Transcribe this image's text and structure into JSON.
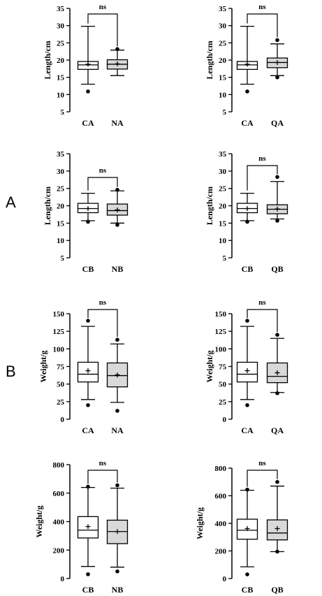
{
  "figure": {
    "panel_labels": [
      "A",
      "B"
    ]
  },
  "chart_data": [
    {
      "type": "boxplot",
      "ylabel": "Length/cm",
      "yticks": [
        5,
        10,
        15,
        20,
        25,
        30,
        35
      ],
      "ylim": [
        5,
        35
      ],
      "significance": "ns",
      "boxes": [
        {
          "category": "CA",
          "fill": "#ffffff",
          "whisker_low": 13,
          "q1": 17.3,
          "median": 18.6,
          "q3": 19.6,
          "whisker_high": 29.8,
          "mean": 18.8,
          "outliers": [
            10.9
          ]
        },
        {
          "category": "NA",
          "fill": "#d9d9d9",
          "whisker_low": 15.5,
          "q1": 17.4,
          "median": 18.8,
          "q3": 20.1,
          "whisker_high": 22.9,
          "mean": 18.9,
          "outliers": [
            23.2
          ]
        }
      ]
    },
    {
      "type": "boxplot",
      "ylabel": "Length/cm",
      "yticks": [
        5,
        10,
        15,
        20,
        25,
        30,
        35
      ],
      "ylim": [
        5,
        35
      ],
      "significance": "ns",
      "boxes": [
        {
          "category": "CA",
          "fill": "#ffffff",
          "whisker_low": 13,
          "q1": 17.3,
          "median": 18.6,
          "q3": 19.6,
          "whisker_high": 29.8,
          "mean": 18.8,
          "outliers": [
            10.9
          ]
        },
        {
          "category": "QA",
          "fill": "#d9d9d9",
          "whisker_low": 15.5,
          "q1": 17.8,
          "median": 19.3,
          "q3": 20.6,
          "whisker_high": 24.7,
          "mean": 19.3,
          "outliers": [
            15,
            25.8
          ]
        }
      ]
    },
    {
      "type": "boxplot",
      "ylabel": "Length/cm",
      "yticks": [
        5,
        10,
        15,
        20,
        25,
        30,
        35
      ],
      "ylim": [
        5,
        35
      ],
      "significance": "ns",
      "boxes": [
        {
          "category": "CB",
          "fill": "#ffffff",
          "whisker_low": 15.7,
          "q1": 18,
          "median": 19.2,
          "q3": 20.7,
          "whisker_high": 23.6,
          "mean": 19.2,
          "outliers": [
            15.4
          ]
        },
        {
          "category": "NB",
          "fill": "#d9d9d9",
          "whisker_low": 15,
          "q1": 17.3,
          "median": 18.6,
          "q3": 20.5,
          "whisker_high": 24.3,
          "mean": 18.8,
          "outliers": [
            14.5,
            24.6
          ]
        }
      ]
    },
    {
      "type": "boxplot",
      "ylabel": "Length/cm",
      "yticks": [
        5,
        10,
        15,
        20,
        25,
        30,
        35
      ],
      "ylim": [
        5,
        35
      ],
      "significance": "ns",
      "boxes": [
        {
          "category": "CB",
          "fill": "#ffffff",
          "whisker_low": 15.7,
          "q1": 18,
          "median": 19.2,
          "q3": 20.7,
          "whisker_high": 23.6,
          "mean": 19.2,
          "outliers": [
            15.4
          ]
        },
        {
          "category": "QB",
          "fill": "#d9d9d9",
          "whisker_low": 16.2,
          "q1": 17.7,
          "median": 19,
          "q3": 20.3,
          "whisker_high": 27,
          "mean": 19.1,
          "outliers": [
            15.7,
            28.3
          ]
        }
      ]
    },
    {
      "type": "boxplot",
      "ylabel": "Weight/g",
      "yticks": [
        0,
        25,
        50,
        75,
        100,
        125,
        150
      ],
      "ylim": [
        0,
        150
      ],
      "significance": "ns",
      "boxes": [
        {
          "category": "CA",
          "fill": "#ffffff",
          "whisker_low": 28,
          "q1": 53,
          "median": 64,
          "q3": 81,
          "whisker_high": 132,
          "mean": 69,
          "outliers": [
            20,
            140
          ]
        },
        {
          "category": "NA",
          "fill": "#d9d9d9",
          "whisker_low": 24,
          "q1": 46,
          "median": 62,
          "q3": 80,
          "whisker_high": 107,
          "mean": 63,
          "outliers": [
            12,
            113
          ]
        }
      ]
    },
    {
      "type": "boxplot",
      "ylabel": "Weight/g",
      "yticks": [
        0,
        25,
        50,
        75,
        100,
        125,
        150
      ],
      "ylim": [
        0,
        150
      ],
      "significance": "ns",
      "boxes": [
        {
          "category": "CA",
          "fill": "#ffffff",
          "whisker_low": 28,
          "q1": 53,
          "median": 64,
          "q3": 81,
          "whisker_high": 132,
          "mean": 69,
          "outliers": [
            20,
            140
          ]
        },
        {
          "category": "QA",
          "fill": "#d9d9d9",
          "whisker_low": 38,
          "q1": 52,
          "median": 61,
          "q3": 80,
          "whisker_high": 115,
          "mean": 66,
          "outliers": [
            37,
            120
          ]
        }
      ]
    },
    {
      "type": "boxplot",
      "ylabel": "Weight/g",
      "yticks": [
        0,
        200,
        400,
        600,
        800
      ],
      "ylim": [
        0,
        800
      ],
      "significance": "ns",
      "boxes": [
        {
          "category": "CB",
          "fill": "#ffffff",
          "whisker_low": 85,
          "q1": 285,
          "median": 340,
          "q3": 435,
          "whisker_high": 640,
          "mean": 365,
          "outliers": [
            30,
            645
          ]
        },
        {
          "category": "NB",
          "fill": "#d9d9d9",
          "whisker_low": 80,
          "q1": 245,
          "median": 330,
          "q3": 410,
          "whisker_high": 635,
          "mean": 330,
          "outliers": [
            50,
            655
          ]
        }
      ]
    },
    {
      "type": "boxplot",
      "ylabel": "Weight/g",
      "yticks": [
        0,
        200,
        400,
        600,
        800
      ],
      "ylim": [
        0,
        800
      ],
      "significance": "ns",
      "boxes": [
        {
          "category": "CB",
          "fill": "#ffffff",
          "whisker_low": 85,
          "q1": 285,
          "median": 350,
          "q3": 430,
          "whisker_high": 640,
          "mean": 362,
          "outliers": [
            30,
            645
          ]
        },
        {
          "category": "QB",
          "fill": "#d9d9d9",
          "whisker_low": 195,
          "q1": 280,
          "median": 330,
          "q3": 425,
          "whisker_high": 670,
          "mean": 362,
          "outliers": [
            195,
            700
          ]
        }
      ]
    }
  ]
}
